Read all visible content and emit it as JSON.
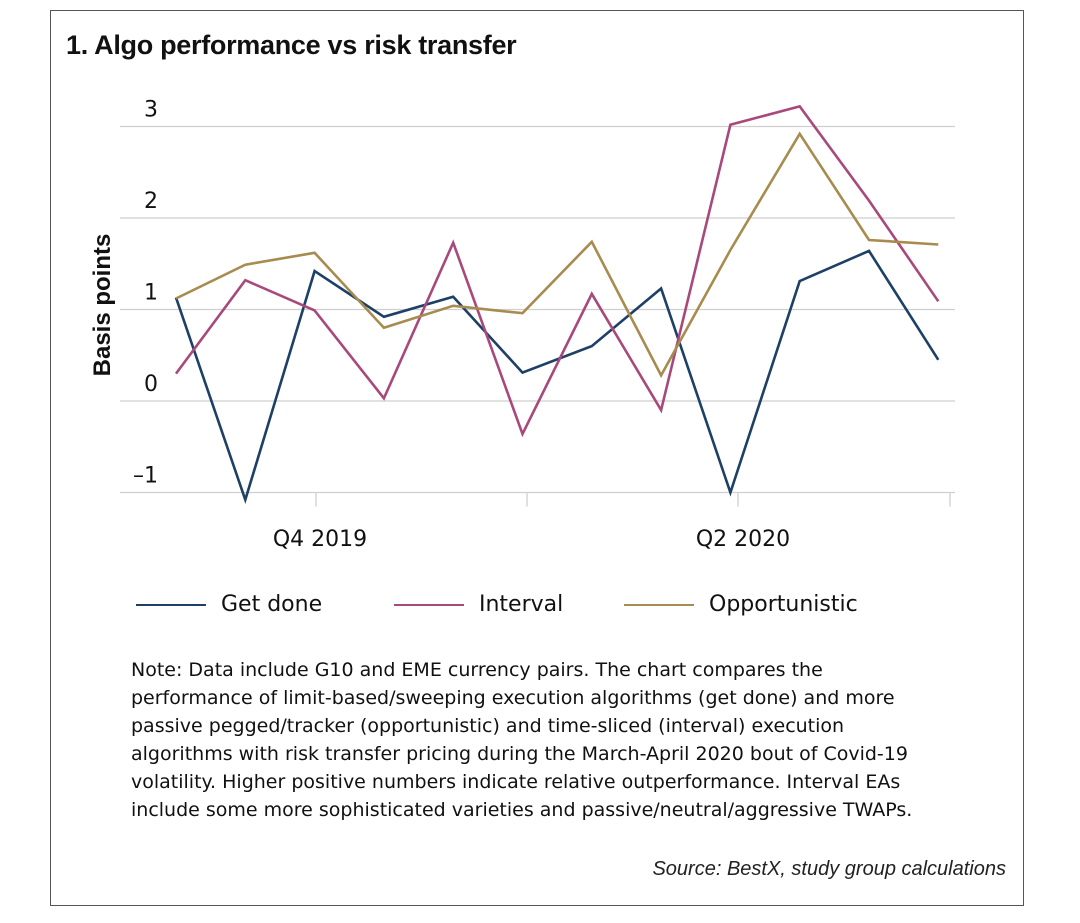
{
  "chart_data": {
    "type": "line",
    "title": "1. Algo performance vs risk transfer",
    "ylabel": "Basis points",
    "xlabel": "",
    "ylim": [
      -1,
      3
    ],
    "yticks": [
      3,
      2,
      1,
      0,
      -1
    ],
    "ytick_labels": [
      "3",
      "2",
      "1",
      "0",
      "–1"
    ],
    "xtick_labels": [
      "Q4 2019",
      "Q2 2020"
    ],
    "grid": true,
    "legend_position": "bottom",
    "x": [
      1,
      2,
      3,
      4,
      5,
      6,
      7,
      8,
      9,
      10,
      11,
      12,
      13
    ],
    "series": [
      {
        "name": "Get done",
        "color": "#1e4066",
        "values": [
          1.13,
          -1.08,
          1.42,
          0.92,
          1.14,
          0.31,
          0.6,
          1.23,
          -1.0,
          1.31,
          1.64,
          0.45,
          null
        ]
      },
      {
        "name": "Interval",
        "color": "#a8497c",
        "values": [
          0.3,
          1.32,
          0.99,
          0.03,
          1.73,
          -0.36,
          1.17,
          -0.1,
          3.02,
          3.22,
          2.19,
          1.09,
          null
        ]
      },
      {
        "name": "Opportunistic",
        "color": "#a88b4e",
        "values": [
          1.12,
          1.49,
          1.62,
          0.8,
          1.04,
          0.96,
          1.74,
          0.28,
          1.65,
          2.92,
          1.76,
          1.71,
          null
        ]
      }
    ]
  },
  "note": "Note: Data include G10 and EME currency pairs. The chart compares the performance of limit-based/sweeping execution algorithms (get done) and more passive pegged/tracker (opportunistic) and time-sliced (interval) execution algorithms with risk transfer pricing during the March-April 2020 bout of Covid-19 volatility. Higher positive numbers indicate relative outperformance. Interval EAs include some more sophisticated varieties and passive/neutral/aggressive TWAPs.",
  "source": "Source: BestX, study group calculations"
}
